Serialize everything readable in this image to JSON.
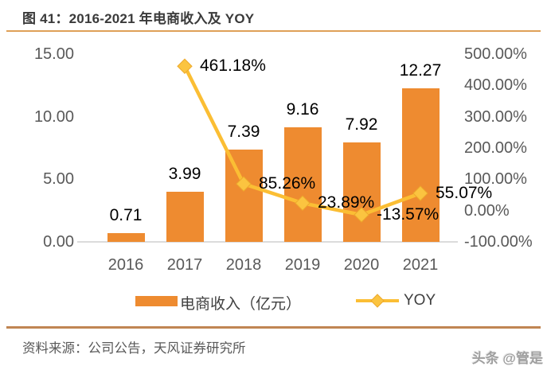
{
  "header": {
    "title": "图 41：2016-2021 年电商收入及 YOY"
  },
  "chart_data": {
    "type": "bar",
    "combo": "bar+line dual axis",
    "title": "图 41：2016-2021 年电商收入及 YOY",
    "categories": [
      "2016",
      "2017",
      "2018",
      "2019",
      "2020",
      "2021"
    ],
    "series": [
      {
        "name": "电商收入（亿元）",
        "type": "bar",
        "axis": "left",
        "values": [
          0.71,
          3.99,
          7.39,
          9.16,
          7.92,
          12.27
        ],
        "value_labels": [
          "0.71",
          "3.99",
          "7.39",
          "9.16",
          "7.92",
          "12.27"
        ]
      },
      {
        "name": "YOY",
        "type": "line",
        "axis": "right",
        "values": [
          null,
          461.18,
          85.26,
          23.89,
          -13.57,
          55.07
        ],
        "value_labels": [
          null,
          "461.18%",
          "85.26%",
          "23.89%",
          "-13.57%",
          "55.07%"
        ]
      }
    ],
    "left_axis": {
      "range": [
        0,
        15
      ],
      "ticks": [
        "15.00",
        "10.00",
        "5.00",
        "0.00"
      ]
    },
    "right_axis": {
      "range": [
        -100,
        500
      ],
      "ticks": [
        "500.00%",
        "400.00%",
        "300.00%",
        "200.00%",
        "100.00%",
        "0.00%",
        "-100.00%"
      ]
    },
    "legend": {
      "position": "bottom",
      "items": [
        "电商收入（亿元）",
        "YOY"
      ]
    },
    "grid": false
  },
  "legend": {
    "bar_label": "电商收入（亿元）",
    "line_label": "YOY"
  },
  "footer": {
    "source": "资料来源：公司公告，天风证券研究所"
  },
  "watermark": {
    "text": "头条 @管是"
  },
  "colors": {
    "bar": "#EE8B30",
    "line": "#FBBE34",
    "marker_fill": "#FBC440",
    "marker_stroke": "#EDA92C",
    "title_rule": "#DFA057",
    "footer_rule": "#C08552",
    "axis_text": "#595959",
    "label_text": "#000000",
    "title_text": "#3A3A3A"
  }
}
